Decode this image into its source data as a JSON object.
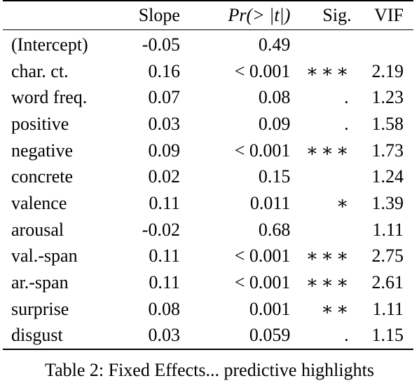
{
  "table": {
    "headers": {
      "name": "",
      "slope": "Slope",
      "pr": "Pr(> |t|)",
      "sig": "Sig.",
      "vif": "VIF"
    },
    "rows": [
      {
        "name": "(Intercept)",
        "slope": "-0.05",
        "pr": "0.49",
        "sig": "",
        "vif": ""
      },
      {
        "name": "char. ct.",
        "slope": "0.16",
        "pr": "< 0.001",
        "sig": "∗∗∗",
        "vif": "2.19"
      },
      {
        "name": "word freq.",
        "slope": "0.07",
        "pr": "0.08",
        "sig": ".",
        "vif": "1.23"
      },
      {
        "name": "positive",
        "slope": "0.03",
        "pr": "0.09",
        "sig": ".",
        "vif": "1.58"
      },
      {
        "name": "negative",
        "slope": "0.09",
        "pr": "< 0.001",
        "sig": "∗∗∗",
        "vif": "1.73"
      },
      {
        "name": "concrete",
        "slope": "0.02",
        "pr": "0.15",
        "sig": "",
        "vif": "1.24"
      },
      {
        "name": "valence",
        "slope": "0.11",
        "pr": "0.011",
        "sig": "∗",
        "vif": "1.39"
      },
      {
        "name": "arousal",
        "slope": "-0.02",
        "pr": "0.68",
        "sig": "",
        "vif": "1.11"
      },
      {
        "name": "val.-span",
        "slope": "0.11",
        "pr": "< 0.001",
        "sig": "∗∗∗",
        "vif": "2.75"
      },
      {
        "name": "ar.-span",
        "slope": "0.11",
        "pr": "< 0.001",
        "sig": "∗∗∗",
        "vif": "2.61"
      },
      {
        "name": "surprise",
        "slope": "0.08",
        "pr": "0.001",
        "sig": "∗∗",
        "vif": "1.11"
      },
      {
        "name": "disgust",
        "slope": "0.03",
        "pr": "0.059",
        "sig": ".",
        "vif": "1.15"
      }
    ]
  },
  "caption": "Table 2: Fixed Effects... predictive highlights"
}
